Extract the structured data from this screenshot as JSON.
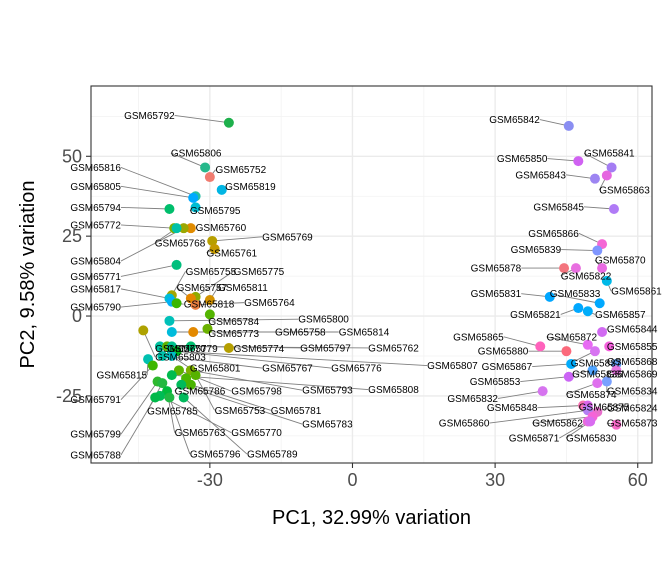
{
  "chart_data": {
    "type": "scatter",
    "title": "",
    "xlabel": "PC1, 32.99% variation",
    "ylabel": "PC2, 9.58% variation",
    "xlim": [
      -55,
      63
    ],
    "ylim": [
      -46,
      72
    ],
    "xticks": [
      -30,
      0,
      30,
      60
    ],
    "yticks": [
      -25,
      0,
      25,
      50
    ],
    "xtick_labels": [
      "-30",
      "0",
      "30",
      "60"
    ],
    "ytick_labels": [
      "-25",
      "0",
      "25",
      "50"
    ],
    "grid": true,
    "legend": "none",
    "points": [
      {
        "id": "GSM65792",
        "x": -26.0,
        "y": 60.5,
        "color": "#1EB04C",
        "lx": -37.4,
        "ly": 62.8,
        "anchor": "end"
      },
      {
        "id": "GSM65806",
        "x": -31.0,
        "y": 46.5,
        "color": "#26B88B",
        "lx": -38.2,
        "ly": 51.0,
        "anchor": "start"
      },
      {
        "id": "GSM65752",
        "x": -30.0,
        "y": 43.5,
        "color": "#F07B6F",
        "lx": -28.8,
        "ly": 45.8,
        "anchor": "start"
      },
      {
        "id": "GSM65816",
        "x": -33.0,
        "y": 37.5,
        "color": "#27BEA3",
        "lx": -48.7,
        "ly": 46.5,
        "anchor": "end"
      },
      {
        "id": "GSM65819",
        "x": -27.5,
        "y": 39.5,
        "color": "#00B5E3",
        "lx": -26.8,
        "ly": 40.5,
        "anchor": "start"
      },
      {
        "id": "GSM65805",
        "x": -33.5,
        "y": 37.0,
        "color": "#00A9FF",
        "lx": -48.7,
        "ly": 40.6,
        "anchor": "end"
      },
      {
        "id": "GSM65795",
        "x": -33.0,
        "y": 34.0,
        "color": "#00BDD3",
        "lx": -34.2,
        "ly": 33.0,
        "anchor": "start"
      },
      {
        "id": "GSM65794",
        "x": -38.5,
        "y": 33.5,
        "color": "#00BE6C",
        "lx": -48.7,
        "ly": 34.0,
        "anchor": "end"
      },
      {
        "id": "GSM65772",
        "x": -37.5,
        "y": 27.5,
        "color": "#7CAE00",
        "lx": -48.7,
        "ly": 28.5,
        "anchor": "end"
      },
      {
        "id": "GSM65760",
        "x": -34.0,
        "y": 27.5,
        "color": "#E08B00",
        "lx": -33.0,
        "ly": 27.7,
        "anchor": "start"
      },
      {
        "id": "GSM65804",
        "x": -35.5,
        "y": 27.5,
        "color": "#9CA700",
        "lx": -48.7,
        "ly": 17.2,
        "anchor": "end"
      },
      {
        "id": "GSM65768",
        "x": -37.0,
        "y": 27.5,
        "color": "#00C1A8",
        "lx": -41.6,
        "ly": 22.8,
        "anchor": "start"
      },
      {
        "id": "GSM65769",
        "x": -29.5,
        "y": 23.5,
        "color": "#B79F00",
        "lx": -19.0,
        "ly": 24.8,
        "anchor": "start"
      },
      {
        "id": "GSM65761",
        "x": -29.0,
        "y": 21.0,
        "color": "#C49A00",
        "lx": -30.7,
        "ly": 19.8,
        "anchor": "start"
      },
      {
        "id": "GSM65771",
        "x": -37.0,
        "y": 16.0,
        "color": "#00BF7D",
        "lx": -48.7,
        "ly": 12.4,
        "anchor": "end"
      },
      {
        "id": "GSM65755",
        "x": -38.0,
        "y": 6.5,
        "color": "#A3A500",
        "lx": -35.1,
        "ly": 14.0,
        "anchor": "start"
      },
      {
        "id": "GSM65775",
        "x": -33.0,
        "y": 6.0,
        "color": "#8EAB00",
        "lx": -25.0,
        "ly": 14.0,
        "anchor": "start"
      },
      {
        "id": "GSM65817",
        "x": -38.5,
        "y": 5.5,
        "color": "#00BCD8",
        "lx": -48.7,
        "ly": 8.5,
        "anchor": "end"
      },
      {
        "id": "GSM65757",
        "x": -34.0,
        "y": 5.5,
        "color": "#E58700",
        "lx": -37.0,
        "ly": 9.0,
        "anchor": "start"
      },
      {
        "id": "GSM65811",
        "x": -30.0,
        "y": 5.0,
        "color": "#D39200",
        "lx": -28.3,
        "ly": 9.0,
        "anchor": "start"
      },
      {
        "id": "GSM65790",
        "x": -38.0,
        "y": 4.5,
        "color": "#00B0F6",
        "lx": -48.7,
        "ly": 2.8,
        "anchor": "end"
      },
      {
        "id": "GSM65818",
        "x": -37.0,
        "y": 4.0,
        "color": "#39B600",
        "lx": -35.5,
        "ly": 3.7,
        "anchor": "start"
      },
      {
        "id": "GSM65764",
        "x": -33.0,
        "y": 3.5,
        "color": "#ED8141",
        "lx": -22.8,
        "ly": 4.2,
        "anchor": "start"
      },
      {
        "id": "GSM65784",
        "x": -30.0,
        "y": 0.5,
        "color": "#53B400",
        "lx": -30.3,
        "ly": -1.7,
        "anchor": "start"
      },
      {
        "id": "GSM65800",
        "x": -38.5,
        "y": -1.5,
        "color": "#00C0B8",
        "lx": -11.4,
        "ly": -1.0,
        "anchor": "start"
      },
      {
        "id": "GSM65773",
        "x": -30.5,
        "y": -4.0,
        "color": "#6BB100",
        "lx": -30.3,
        "ly": -5.5,
        "anchor": "start"
      },
      {
        "id": "GSM65758",
        "x": -33.5,
        "y": -5.0,
        "color": "#E38900",
        "lx": -16.3,
        "ly": -5.0,
        "anchor": "start"
      },
      {
        "id": "GSM65814",
        "x": -38.0,
        "y": -5.0,
        "color": "#00BBDB",
        "lx": -2.9,
        "ly": -5.0,
        "anchor": "start"
      },
      {
        "id": "GSM65803",
        "x": -44.0,
        "y": -4.5,
        "color": "#AEA200",
        "lx": -41.5,
        "ly": -12.8,
        "anchor": "start"
      },
      {
        "id": "GSM65770",
        "x": -40.5,
        "y": -9.5,
        "color": "#00C19F",
        "lx": -41.5,
        "ly": -10.2,
        "anchor": "start"
      },
      {
        "id": "GSM65779",
        "x": -39.0,
        "y": -9.5,
        "color": "#61B300",
        "lx": -39.0,
        "ly": -10.2,
        "anchor": "start"
      },
      {
        "id": "GSM65774",
        "x": -26.0,
        "y": -10.0,
        "color": "#B59F00",
        "lx": -25.0,
        "ly": -10.2,
        "anchor": "start"
      },
      {
        "id": "GSM65797",
        "x": -34.0,
        "y": -9.5,
        "color": "#00BE70",
        "lx": -11.0,
        "ly": -10.0,
        "anchor": "start"
      },
      {
        "id": "GSM65762",
        "x": -38.0,
        "y": -9.5,
        "color": "#00C08D",
        "lx": 3.3,
        "ly": -10.0,
        "anchor": "start"
      },
      {
        "id": "GSM65807",
        "x": -38.0,
        "y": -11.0,
        "color": "#00BF7A",
        "lx": 15.7,
        "ly": -15.5,
        "anchor": "start"
      },
      {
        "id": "GSM65776",
        "x": -37.0,
        "y": -11.0,
        "color": "#00B81F",
        "lx": -4.5,
        "ly": -16.3,
        "anchor": "start"
      },
      {
        "id": "GSM65767",
        "x": -40.0,
        "y": -12.5,
        "color": "#00C1AA",
        "lx": -19.0,
        "ly": -16.3,
        "anchor": "start"
      },
      {
        "id": "GSM65801",
        "x": -38.0,
        "y": -12.5,
        "color": "#00BFC4",
        "lx": -34.2,
        "ly": -16.3,
        "anchor": "start"
      },
      {
        "id": "GSM65815",
        "x": -43.0,
        "y": -13.5,
        "color": "#00C0AF",
        "lx": -43.2,
        "ly": -18.5,
        "anchor": "end"
      },
      {
        "id": "GSM65791",
        "x": -42.0,
        "y": -15.5,
        "color": "#3DB600",
        "lx": -48.7,
        "ly": -26.2,
        "anchor": "end"
      },
      {
        "id": "GSM65798",
        "x": -36.5,
        "y": -17.0,
        "color": "#5EB300",
        "lx": -25.5,
        "ly": -23.5,
        "anchor": "start"
      },
      {
        "id": "GSM65793",
        "x": -34.0,
        "y": -17.0,
        "color": "#7CAE00",
        "lx": -10.6,
        "ly": -23.2,
        "anchor": "start"
      },
      {
        "id": "GSM65808",
        "x": -38.0,
        "y": -18.5,
        "color": "#00BB4E",
        "lx": 3.3,
        "ly": -23.0,
        "anchor": "start"
      },
      {
        "id": "GSM65786",
        "x": -35.0,
        "y": -19.5,
        "color": "#4BB500",
        "lx": -37.4,
        "ly": -23.5,
        "anchor": "start"
      },
      {
        "id": "GSM65799",
        "x": -41.0,
        "y": -20.5,
        "color": "#2EB82E",
        "lx": -48.7,
        "ly": -37.0,
        "anchor": "end"
      },
      {
        "id": "GSM65785",
        "x": -40.0,
        "y": -21.0,
        "color": "#23B840",
        "lx": -43.2,
        "ly": -29.8,
        "anchor": "start"
      },
      {
        "id": "GSM65753",
        "x": -33.0,
        "y": -18.5,
        "color": "#57B200",
        "lx": -29.0,
        "ly": -29.5,
        "anchor": "start"
      },
      {
        "id": "GSM65781",
        "x": -34.0,
        "y": -21.5,
        "color": "#4AB400",
        "lx": -17.2,
        "ly": -29.5,
        "anchor": "start"
      },
      {
        "id": "GSM65783",
        "x": -36.0,
        "y": -21.5,
        "color": "#00BA5A",
        "lx": -10.6,
        "ly": -33.8,
        "anchor": "start"
      },
      {
        "id": "GSM65763",
        "x": -39.0,
        "y": -23.5,
        "color": "#00BA3B",
        "lx": -37.4,
        "ly": -36.5,
        "anchor": "start"
      },
      {
        "id": "GSM65770",
        "x": -40.5,
        "y": -25.0,
        "color": "#00BC55",
        "lx": -25.5,
        "ly": -36.5,
        "anchor": "start"
      },
      {
        "id": "GSM65788",
        "x": -41.5,
        "y": -25.5,
        "color": "#00B94A",
        "lx": -48.7,
        "ly": -43.5,
        "anchor": "end"
      },
      {
        "id": "GSM65796",
        "x": -38.5,
        "y": -25.5,
        "color": "#20B843",
        "lx": -34.2,
        "ly": -43.2,
        "anchor": "start"
      },
      {
        "id": "GSM65789",
        "x": -35.5,
        "y": -25.5,
        "color": "#00BA5C",
        "lx": -22.2,
        "ly": -43.2,
        "anchor": "start"
      },
      {
        "id": "GSM65842",
        "x": 45.5,
        "y": 59.5,
        "color": "#8A8EF2",
        "lx": 39.4,
        "ly": 61.5,
        "anchor": "end"
      },
      {
        "id": "GSM65841",
        "x": 54.5,
        "y": 46.5,
        "color": "#A47DF3",
        "lx": 48.7,
        "ly": 51.0,
        "anchor": "start"
      },
      {
        "id": "GSM65850",
        "x": 47.5,
        "y": 48.5,
        "color": "#D062F2",
        "lx": 41.0,
        "ly": 49.3,
        "anchor": "end"
      },
      {
        "id": "GSM65843",
        "x": 51.0,
        "y": 43.0,
        "color": "#9D85F2",
        "lx": 44.9,
        "ly": 44.2,
        "anchor": "end"
      },
      {
        "id": "GSM65863",
        "x": 53.5,
        "y": 44.0,
        "color": "#E566E0",
        "lx": 51.9,
        "ly": 39.4,
        "anchor": "start"
      },
      {
        "id": "GSM65845",
        "x": 55.0,
        "y": 33.5,
        "color": "#B07BF6",
        "lx": 48.7,
        "ly": 34.2,
        "anchor": "end"
      },
      {
        "id": "GSM65866",
        "x": 52.5,
        "y": 22.5,
        "color": "#F467D5",
        "lx": 47.6,
        "ly": 25.9,
        "anchor": "end"
      },
      {
        "id": "GSM65839",
        "x": 51.5,
        "y": 20.5,
        "color": "#7F96FF",
        "lx": 43.9,
        "ly": 20.8,
        "anchor": "end"
      },
      {
        "id": "GSM65870",
        "x": 52.5,
        "y": 15.0,
        "color": "#EA6BE3",
        "lx": 51.0,
        "ly": 17.5,
        "anchor": "start"
      },
      {
        "id": "GSM65878",
        "x": 44.5,
        "y": 15.0,
        "color": "#F3747D",
        "lx": 35.5,
        "ly": 15.0,
        "anchor": "end"
      },
      {
        "id": "GSM65822",
        "x": 47.0,
        "y": 15.0,
        "color": "#E86FE0",
        "lx": 43.8,
        "ly": 12.6,
        "anchor": "start"
      },
      {
        "id": "GSM65861",
        "x": 53.5,
        "y": 11.0,
        "color": "#00B9E8",
        "lx": 54.4,
        "ly": 7.8,
        "anchor": "start"
      },
      {
        "id": "GSM65831",
        "x": 41.5,
        "y": 6.0,
        "color": "#00A6FF",
        "lx": 35.5,
        "ly": 7.0,
        "anchor": "end"
      },
      {
        "id": "GSM65833",
        "x": 52.0,
        "y": 4.0,
        "color": "#00A9FF",
        "lx": 41.5,
        "ly": 7.0,
        "anchor": "start"
      },
      {
        "id": "GSM65821",
        "x": 47.5,
        "y": 2.5,
        "color": "#00A8FF",
        "lx": 43.8,
        "ly": 0.5,
        "anchor": "end"
      },
      {
        "id": "GSM65857",
        "x": 49.5,
        "y": 1.5,
        "color": "#00ADFA",
        "lx": 51.0,
        "ly": 0.5,
        "anchor": "start"
      },
      {
        "id": "GSM65844",
        "x": 52.5,
        "y": -5.0,
        "color": "#D16BF2",
        "lx": 53.5,
        "ly": -4.0,
        "anchor": "start"
      },
      {
        "id": "GSM65865",
        "x": 39.5,
        "y": -9.5,
        "color": "#FF62BC",
        "lx": 31.8,
        "ly": -6.5,
        "anchor": "end"
      },
      {
        "id": "GSM65872",
        "x": 49.5,
        "y": -9.0,
        "color": "#E76BF3",
        "lx": 40.8,
        "ly": -6.5,
        "anchor": "start"
      },
      {
        "id": "GSM65855",
        "x": 54.0,
        "y": -9.5,
        "color": "#F561DD",
        "lx": 53.5,
        "ly": -9.5,
        "anchor": "start"
      },
      {
        "id": "GSM65880",
        "x": 45.0,
        "y": -11.0,
        "color": "#FB697B",
        "lx": 37.0,
        "ly": -11.0,
        "anchor": "end"
      },
      {
        "id": "GSM65837",
        "x": 51.0,
        "y": -11.0,
        "color": "#D774F1",
        "lx": 45.9,
        "ly": -14.7,
        "anchor": "start"
      },
      {
        "id": "GSM65868",
        "x": 55.5,
        "y": -15.0,
        "color": "#5F9EF3",
        "lx": 53.5,
        "ly": -14.2,
        "anchor": "start"
      },
      {
        "id": "GSM65867",
        "x": 46.0,
        "y": -15.0,
        "color": "#00ACFC",
        "lx": 37.8,
        "ly": -15.8,
        "anchor": "end"
      },
      {
        "id": "GSM65836",
        "x": 50.5,
        "y": -17.0,
        "color": "#4FA4FF",
        "lx": 46.2,
        "ly": -18.2,
        "anchor": "start"
      },
      {
        "id": "GSM65869",
        "x": 55.5,
        "y": -17.0,
        "color": "#E877E2",
        "lx": 53.5,
        "ly": -18.2,
        "anchor": "start"
      },
      {
        "id": "GSM65853",
        "x": 45.5,
        "y": -19.0,
        "color": "#CB64F5",
        "lx": 35.3,
        "ly": -20.5,
        "anchor": "end"
      },
      {
        "id": "GSM65834",
        "x": 53.5,
        "y": -20.5,
        "color": "#79A0FF",
        "lx": 53.5,
        "ly": -23.5,
        "anchor": "start"
      },
      {
        "id": "GSM65874",
        "x": 51.5,
        "y": -21.0,
        "color": "#DF70EE",
        "lx": 44.9,
        "ly": -24.5,
        "anchor": "start"
      },
      {
        "id": "GSM65832",
        "x": 40.0,
        "y": -23.5,
        "color": "#D674EF",
        "lx": 30.6,
        "ly": -25.8,
        "anchor": "end"
      },
      {
        "id": "GSM65848",
        "x": 48.5,
        "y": -28.0,
        "color": "#F971B1",
        "lx": 38.9,
        "ly": -28.7,
        "anchor": "end"
      },
      {
        "id": "GSM65875",
        "x": 49.5,
        "y": -28.0,
        "color": "#DB66EC",
        "lx": 47.6,
        "ly": -28.5,
        "anchor": "start"
      },
      {
        "id": "GSM65824",
        "x": 51.5,
        "y": -30.0,
        "color": "#E86FCB",
        "lx": 53.5,
        "ly": -28.8,
        "anchor": "start"
      },
      {
        "id": "GSM65860",
        "x": 49.5,
        "y": -29.5,
        "color": "#B37FF3",
        "lx": 28.8,
        "ly": -33.5,
        "anchor": "end"
      },
      {
        "id": "GSM65862",
        "x": 50.5,
        "y": -31.5,
        "color": "#F564D7",
        "lx": 37.8,
        "ly": -33.5,
        "anchor": "start"
      },
      {
        "id": "GSM65873",
        "x": 55.5,
        "y": -34.0,
        "color": "#F568C7",
        "lx": 53.5,
        "ly": -33.5,
        "anchor": "start"
      },
      {
        "id": "GSM65871",
        "x": 49.5,
        "y": -33.0,
        "color": "#EC6AD9",
        "lx": 43.5,
        "ly": -38.2,
        "anchor": "end"
      },
      {
        "id": "GSM65830",
        "x": 50.0,
        "y": -33.0,
        "color": "#D96CF0",
        "lx": 44.9,
        "ly": -38.2,
        "anchor": "start"
      }
    ]
  }
}
